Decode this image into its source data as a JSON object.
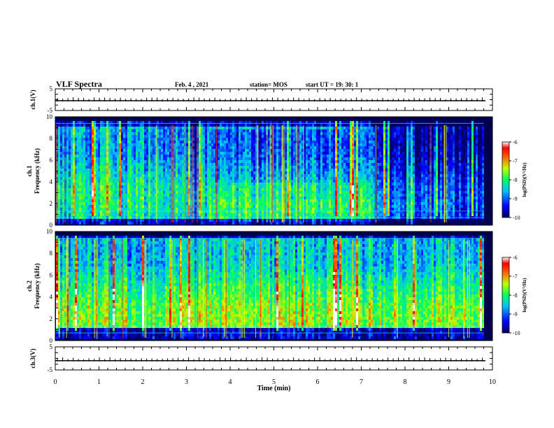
{
  "header": {
    "title": "VLF Spectra",
    "date": "Feb. 4 , 2021",
    "station": "station= MOS",
    "start": "start  UT =   19: 30: 1"
  },
  "chart_data": {
    "type": "heatmap",
    "title": "VLF Spectra",
    "xlabel": "Time (min)",
    "xlim": [
      0,
      10
    ],
    "x_ticks": [
      0,
      1,
      2,
      3,
      4,
      5,
      6,
      7,
      8,
      9,
      10
    ],
    "panels": [
      {
        "id": "ch1-voltage",
        "type": "line",
        "ylabel": "ch.1(V)",
        "ylim": [
          -5,
          5
        ],
        "y_ticks": [
          5,
          -5
        ],
        "baseline": -0.5
      },
      {
        "id": "ch1-spectrogram",
        "type": "heatmap",
        "ylabel_line1": "ch.1",
        "ylabel_line2": "Frequency (kHz)",
        "ylim": [
          0,
          10
        ],
        "y_ticks": [
          0,
          2,
          4,
          6,
          8,
          10
        ],
        "colorbar": {
          "label": "log(PSD)(V²/Hz)",
          "range": [
            -10,
            -6
          ],
          "ticks": [
            -6,
            -7,
            -8,
            -9,
            -10
          ]
        }
      },
      {
        "id": "ch2-spectrogram",
        "type": "heatmap",
        "ylabel_line1": "ch.2",
        "ylabel_line2": "Frequency (kHz)",
        "ylim": [
          0,
          10
        ],
        "y_ticks": [
          0,
          2,
          4,
          6,
          8,
          10
        ],
        "colorbar": {
          "label": "log(PSD)(V²/Hz)",
          "range": [
            -10,
            -6
          ],
          "ticks": [
            -6,
            -7,
            -8,
            -9,
            -10
          ]
        }
      },
      {
        "id": "ch3-voltage",
        "type": "line",
        "ylabel": "ch.3(V)",
        "ylim": [
          -5,
          5
        ],
        "y_ticks": [
          5,
          -5
        ],
        "baseline": -1.0
      }
    ],
    "colormap": [
      "#000080",
      "#0000ff",
      "#00a0ff",
      "#00ffff",
      "#00ff80",
      "#a0ff00",
      "#ffff00",
      "#ff8000",
      "#ff0000",
      "#ffffff"
    ]
  }
}
